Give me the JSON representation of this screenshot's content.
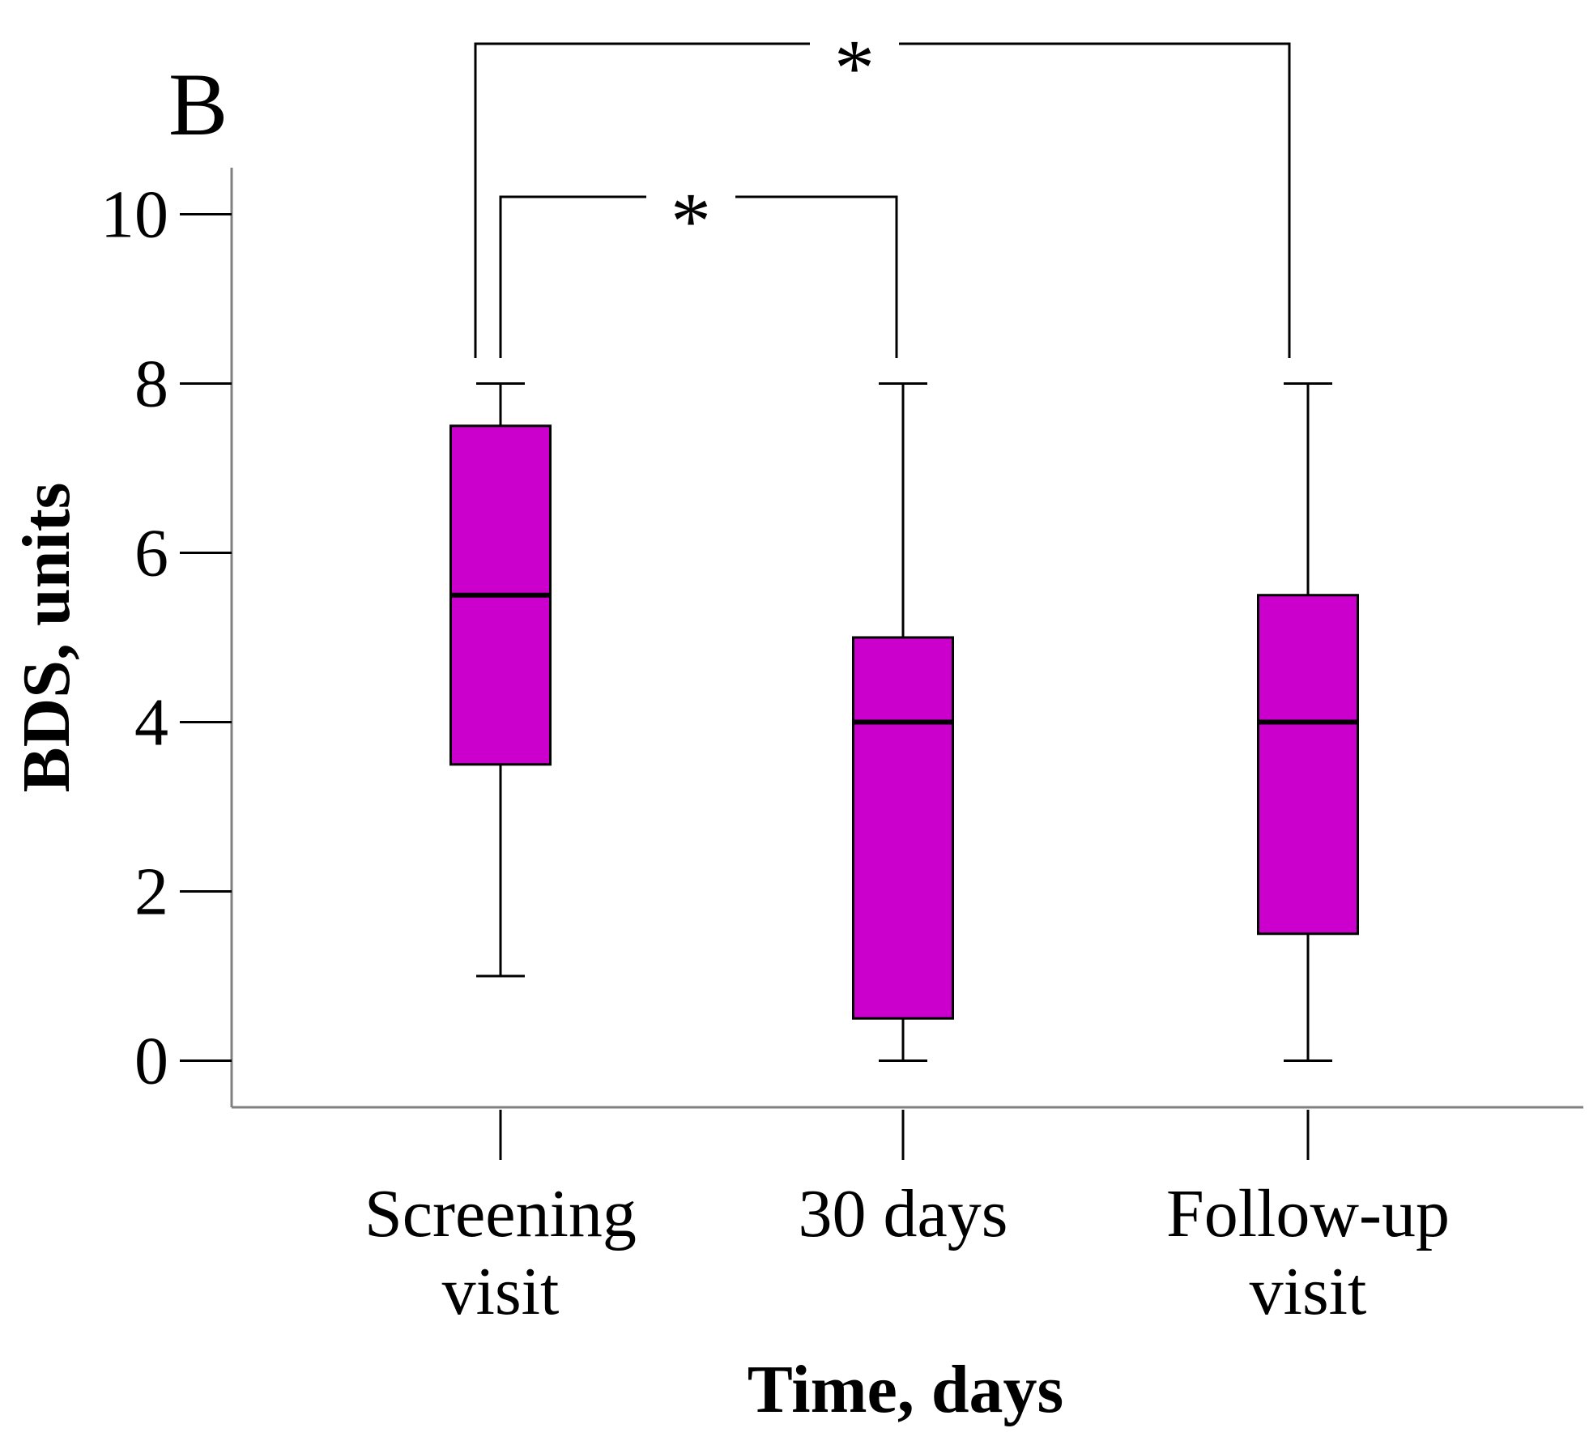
{
  "chart_data": {
    "type": "boxplot",
    "panel_label": "B",
    "xlabel": "Time, days",
    "ylabel": "BDS, units",
    "ylim": [
      -0.55,
      10.55
    ],
    "yticks": [
      0,
      2,
      4,
      6,
      8,
      10
    ],
    "ytick_labels": [
      "0",
      "2",
      "4",
      "6",
      "8",
      "10"
    ],
    "categories": [
      {
        "lines": [
          "Screening",
          "visit"
        ]
      },
      {
        "lines": [
          "30 days"
        ]
      },
      {
        "lines": [
          "Follow-up",
          "visit"
        ]
      }
    ],
    "boxes": [
      {
        "name": "Screening visit",
        "min": 1,
        "q1": 3.5,
        "median": 5.5,
        "q3": 7.5,
        "max": 8
      },
      {
        "name": "30 days",
        "min": 0,
        "q1": 0.5,
        "median": 4,
        "q3": 5,
        "max": 8
      },
      {
        "name": "Follow-up visit",
        "min": 0,
        "q1": 1.5,
        "median": 4,
        "q3": 5.5,
        "max": 8
      }
    ],
    "significance": [
      {
        "from": 0,
        "to": 1,
        "label": "*"
      },
      {
        "from": 0,
        "to": 2,
        "label": "*"
      }
    ],
    "colors": {
      "box_fill": "#CC00CC",
      "axis": "#808080",
      "ink": "#000000"
    }
  }
}
